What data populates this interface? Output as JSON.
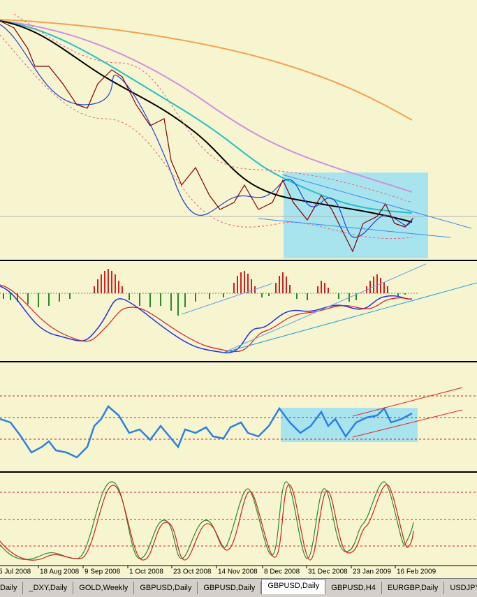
{
  "x_axis": {
    "labels": [
      "5 Jul 2008",
      "18 Aug 2008",
      "9 Sep 2008",
      "1 Oct 2008",
      "23 Oct 2008",
      "14 Nov 2008",
      "8 Dec 2008",
      "31 Dec 2008",
      "23 Jan 2009",
      "16 Feb 2009"
    ]
  },
  "tabs": [
    {
      "label": "Daily",
      "active": false
    },
    {
      "label": "_DXY,Daily",
      "active": false
    },
    {
      "label": "GOLD,Weekly",
      "active": false
    },
    {
      "label": "GBPUSD,Daily",
      "active": false
    },
    {
      "label": "GBPUSD,Daily",
      "active": false
    },
    {
      "label": "GBPUSD,Daily",
      "active": true
    },
    {
      "label": "GBPUSD,H4",
      "active": false
    },
    {
      "label": "EURGBP,Daily",
      "active": false
    },
    {
      "label": "USDJPY,H",
      "active": false
    }
  ]
}
